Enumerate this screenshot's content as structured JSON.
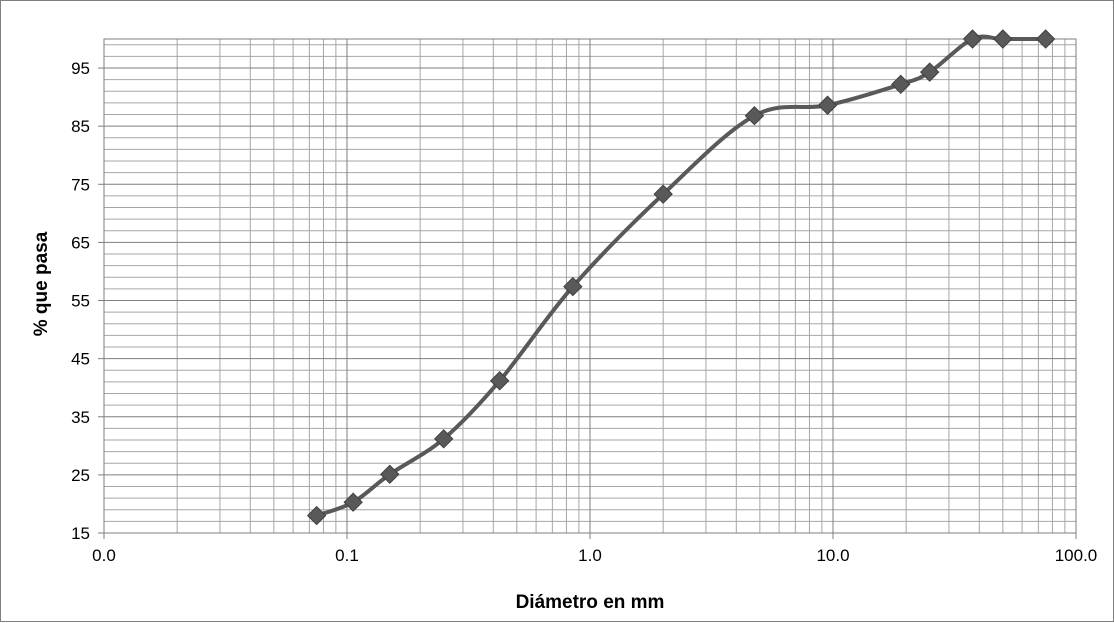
{
  "chart_data": {
    "type": "line",
    "title": "",
    "xlabel": "Diámetro en mm",
    "ylabel": "% que pasa",
    "x_scale": "log",
    "xlim": [
      0.01,
      100
    ],
    "ylim": [
      15,
      100
    ],
    "x_tick_labels": [
      "0.0",
      "0.1",
      "1.0",
      "10.0",
      "100.0"
    ],
    "y_ticks": [
      15,
      25,
      35,
      45,
      55,
      65,
      75,
      85,
      95
    ],
    "grid": true,
    "marker": "diamond",
    "smooth": true,
    "colors": {
      "series": "#595959",
      "grid": "#a6a6a6",
      "major_grid": "#7f7f7f"
    },
    "series": [
      {
        "x": [
          0.075,
          0.106,
          0.15,
          0.25,
          0.425,
          0.85,
          2.0,
          4.75,
          9.5,
          19.0,
          25.0,
          37.5,
          50.0,
          75.0
        ],
        "y": [
          18.0,
          20.3,
          25.1,
          31.2,
          41.2,
          57.4,
          73.3,
          86.8,
          88.6,
          92.2,
          94.3,
          100.0,
          100.0,
          100.0
        ]
      }
    ]
  }
}
